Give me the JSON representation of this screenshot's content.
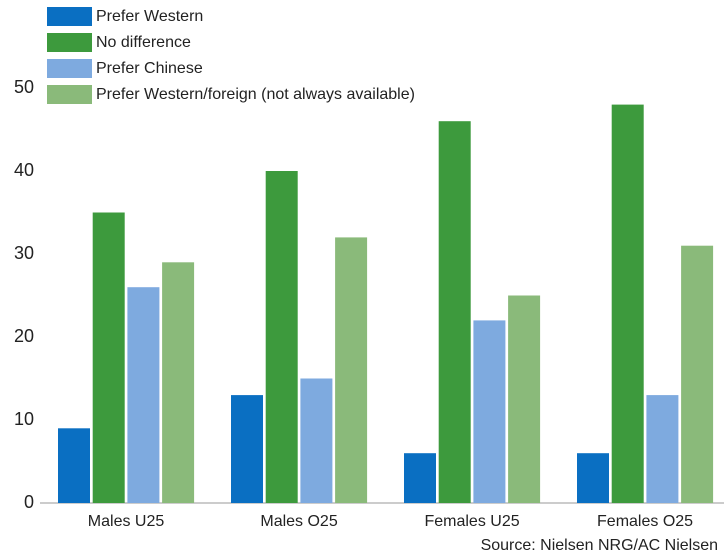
{
  "chart_data": {
    "type": "bar",
    "categories": [
      "Males U25",
      "Males O25",
      "Females U25",
      "Females O25"
    ],
    "series": [
      {
        "name": "Prefer Western",
        "color": "#0a6fc2",
        "values": [
          9,
          13,
          6,
          6
        ]
      },
      {
        "name": "No difference",
        "color": "#3d9a3d",
        "values": [
          35,
          40,
          46,
          48
        ]
      },
      {
        "name": "Prefer Chinese",
        "color": "#7eaadf",
        "values": [
          26,
          15,
          22,
          13
        ]
      },
      {
        "name": "Prefer Western/foreign (not always available)",
        "color": "#8aba7a",
        "values": [
          29,
          32,
          25,
          31
        ]
      }
    ],
    "ylim": [
      0,
      50
    ],
    "yticks": [
      0,
      10,
      20,
      30,
      40,
      50
    ],
    "grid": false,
    "legend": "upper left",
    "source": "Source: Nielsen NRG/AC Nielsen"
  }
}
